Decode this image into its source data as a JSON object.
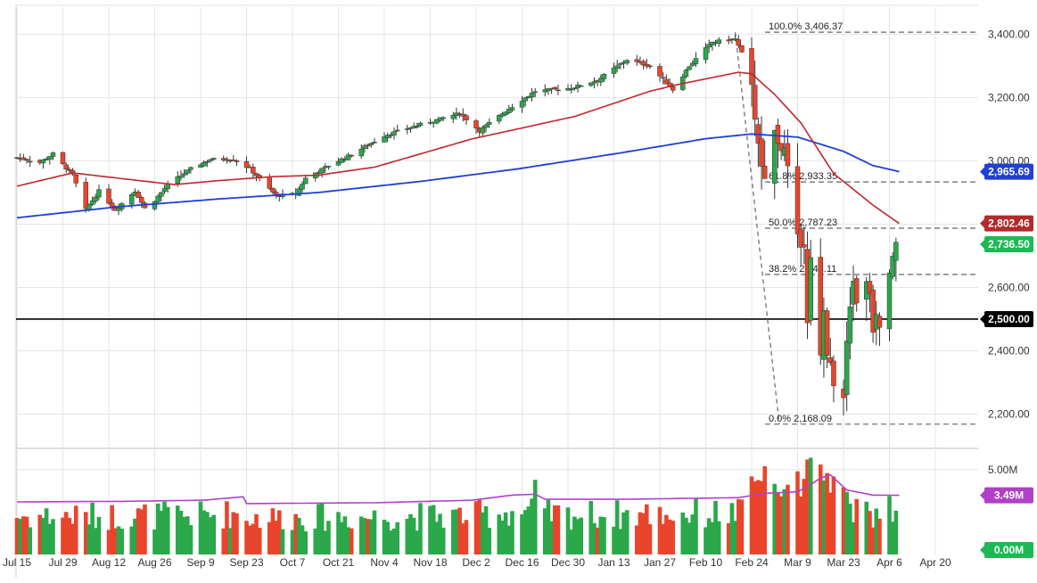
{
  "colors": {
    "up": "#2aa84a",
    "down": "#e8452c",
    "ma50": "#c0272d",
    "ma200": "#1f3fd6",
    "volume_ma": "#b040c8",
    "support": "#000000",
    "grid": "#e4e4e4",
    "fib": "#666666",
    "badge_dark": "#000000",
    "badge_green": "#1db954",
    "badge_red": "#b22a2a",
    "badge_blue": "#1f3fd6",
    "badge_purple": "#b040c8"
  },
  "chart_data": {
    "type": "candlestick",
    "x_ticks": [
      "Jul 15",
      "Jul 29",
      "Aug 12",
      "Aug 26",
      "Sep 9",
      "Sep 23",
      "Oct 7",
      "Oct 21",
      "Nov 4",
      "Nov 18",
      "Dec 2",
      "Dec 16",
      "Dec 30",
      "Jan 13",
      "Jan 27",
      "Feb 10",
      "Feb 24",
      "Mar 9",
      "Mar 23",
      "Apr 6",
      "Apr 20"
    ],
    "price_axis": {
      "range": [
        2100,
        3480
      ],
      "ticks": [
        2200,
        2400,
        2600,
        2800,
        3000,
        3200,
        3400
      ],
      "tick_labels": [
        "2,200.00",
        "2,400.00",
        "2,600.00",
        "2,800.00",
        "3,000.00",
        "3,200.00",
        "3,400.00"
      ]
    },
    "volume_axis": {
      "range": [
        0,
        6.2
      ],
      "unit": "M",
      "ticks": [
        5
      ],
      "tick_labels": [
        "5.00M"
      ]
    },
    "price_anchors": [
      [
        "Jul 15",
        3010
      ],
      [
        "Jul 22",
        2995
      ],
      [
        "Jul 26",
        3022
      ],
      [
        "Aug 1",
        2955
      ],
      [
        "Aug 5",
        2845
      ],
      [
        "Aug 9",
        2905
      ],
      [
        "Aug 14",
        2845
      ],
      [
        "Aug 20",
        2905
      ],
      [
        "Aug 23",
        2850
      ],
      [
        "Aug 26",
        2875
      ],
      [
        "Aug 30",
        2925
      ],
      [
        "Sep 6",
        2975
      ],
      [
        "Sep 12",
        3005
      ],
      [
        "Sep 19",
        3005
      ],
      [
        "Sep 24",
        2975
      ],
      [
        "Oct 2",
        2890
      ],
      [
        "Oct 8",
        2895
      ],
      [
        "Oct 11",
        2945
      ],
      [
        "Oct 18",
        2985
      ],
      [
        "Oct 25",
        3020
      ],
      [
        "Nov 4",
        3080
      ],
      [
        "Nov 15",
        3115
      ],
      [
        "Nov 27",
        3150
      ],
      [
        "Dec 3",
        3095
      ],
      [
        "Dec 12",
        3165
      ],
      [
        "Dec 20",
        3220
      ],
      [
        "Dec 31",
        3230
      ],
      [
        "Jan 8",
        3255
      ],
      [
        "Jan 17",
        3320
      ],
      [
        "Jan 24",
        3300
      ],
      [
        "Jan 31",
        3225
      ],
      [
        "Feb 5",
        3300
      ],
      [
        "Feb 12",
        3375
      ],
      [
        "Feb 19",
        3385
      ],
      [
        "Feb 21",
        3340
      ],
      [
        "Feb 24",
        3225
      ],
      [
        "Feb 27",
        2980
      ],
      [
        "Feb 28",
        2955
      ],
      [
        "Mar 2",
        3090
      ],
      [
        "Mar 5",
        3025
      ],
      [
        "Mar 6",
        2975
      ],
      [
        "Mar 9",
        2750
      ],
      [
        "Mar 11",
        2740
      ],
      [
        "Mar 12",
        2480
      ],
      [
        "Mar 13",
        2710
      ],
      [
        "Mar 16",
        2385
      ],
      [
        "Mar 17",
        2530
      ],
      [
        "Mar 18",
        2400
      ],
      [
        "Mar 20",
        2305
      ],
      [
        "Mar 23",
        2237
      ],
      [
        "Mar 24",
        2447
      ],
      [
        "Mar 26",
        2630
      ],
      [
        "Mar 27",
        2541
      ],
      [
        "Mar 30",
        2627
      ],
      [
        "Mar 31",
        2585
      ],
      [
        "Apr 1",
        2471
      ],
      [
        "Apr 2",
        2527
      ],
      [
        "Apr 3",
        2489
      ],
      [
        "Apr 6",
        2664
      ],
      [
        "Apr 8",
        2750
      ]
    ],
    "ma50_anchors": [
      [
        "Jul 15",
        2920
      ],
      [
        "Aug 1",
        2962
      ],
      [
        "Aug 15",
        2945
      ],
      [
        "Sep 1",
        2925
      ],
      [
        "Sep 15",
        2938
      ],
      [
        "Oct 1",
        2950
      ],
      [
        "Oct 15",
        2955
      ],
      [
        "Nov 1",
        2980
      ],
      [
        "Dec 1",
        3070
      ],
      [
        "Jan 1",
        3140
      ],
      [
        "Jan 24",
        3220
      ],
      [
        "Feb 1",
        3240
      ],
      [
        "Feb 20",
        3280
      ],
      [
        "Feb 24",
        3275
      ],
      [
        "Mar 2",
        3210
      ],
      [
        "Mar 10",
        3120
      ],
      [
        "Mar 20",
        2960
      ],
      [
        "Apr 1",
        2860
      ],
      [
        "Apr 9",
        2802
      ]
    ],
    "ma200_anchors": [
      [
        "Jul 15",
        2820
      ],
      [
        "Aug 15",
        2855
      ],
      [
        "Sep 15",
        2880
      ],
      [
        "Oct 15",
        2900
      ],
      [
        "Nov 15",
        2935
      ],
      [
        "Dec 15",
        2975
      ],
      [
        "Jan 15",
        3025
      ],
      [
        "Feb 10",
        3070
      ],
      [
        "Feb 24",
        3085
      ],
      [
        "Mar 9",
        3075
      ],
      [
        "Mar 23",
        3030
      ],
      [
        "Apr 1",
        2985
      ],
      [
        "Apr 9",
        2966
      ]
    ],
    "volume_ma_anchors": [
      [
        "Jul 15",
        3.1
      ],
      [
        "Aug 15",
        3.13
      ],
      [
        "Sep 10",
        3.2
      ],
      [
        "Sep 22",
        3.4
      ],
      [
        "Sep 23",
        3.0
      ],
      [
        "Nov 1",
        3.05
      ],
      [
        "Dec 1",
        3.2
      ],
      [
        "Dec 13",
        3.5
      ],
      [
        "Dec 20",
        3.55
      ],
      [
        "Dec 23",
        3.25
      ],
      [
        "Jan 15",
        3.25
      ],
      [
        "Feb 20",
        3.35
      ],
      [
        "Feb 28",
        3.6
      ],
      [
        "Mar 9",
        3.7
      ],
      [
        "Mar 12",
        4.0
      ],
      [
        "Mar 16",
        4.5
      ],
      [
        "Mar 19",
        4.7
      ],
      [
        "Mar 24",
        3.8
      ],
      [
        "Apr 1",
        3.5
      ],
      [
        "Apr 9",
        3.49
      ]
    ],
    "volume_spikes": [
      [
        "Dec 20",
        4.4,
        "up"
      ],
      [
        "Feb 24",
        4.6,
        "down"
      ],
      [
        "Feb 28",
        5.2,
        "down"
      ],
      [
        "Mar 9",
        4.9,
        "down"
      ],
      [
        "Mar 12",
        5.6,
        "down"
      ],
      [
        "Mar 13",
        5.7,
        "up"
      ],
      [
        "Mar 16",
        5.3,
        "down"
      ],
      [
        "Mar 18",
        4.8,
        "down"
      ],
      [
        "Mar 20",
        4.6,
        "down"
      ]
    ],
    "fib_levels": [
      {
        "label": "100.0% 3,406.37",
        "value": 3406.37
      },
      {
        "label": "61.8% 2,933.35",
        "value": 2933.35
      },
      {
        "label": "50.0% 2,787.23",
        "value": 2787.23
      },
      {
        "label": "38.2% 2,641.11",
        "value": 2641.11
      },
      {
        "label": "0.0% 2,168.09",
        "value": 2168.09
      }
    ],
    "fib_start_date": "Feb 19",
    "fib_end_date": "Mar 23",
    "support_level": 2500,
    "badges": [
      {
        "label": "2,965.69",
        "value": 2965.69,
        "color": "badge_blue"
      },
      {
        "label": "2,802.46",
        "value": 2802.46,
        "color": "badge_red"
      },
      {
        "label": "2,736.50",
        "value": 2736.5,
        "color": "badge_green"
      },
      {
        "label": "2,500.00",
        "value": 2500,
        "color": "badge_dark"
      }
    ],
    "volume_badges": [
      {
        "label": "3.49M",
        "value": 3.49,
        "color": "badge_purple"
      },
      {
        "label": "0.00M",
        "value": 0,
        "color": "badge_green"
      }
    ],
    "grid": true
  }
}
